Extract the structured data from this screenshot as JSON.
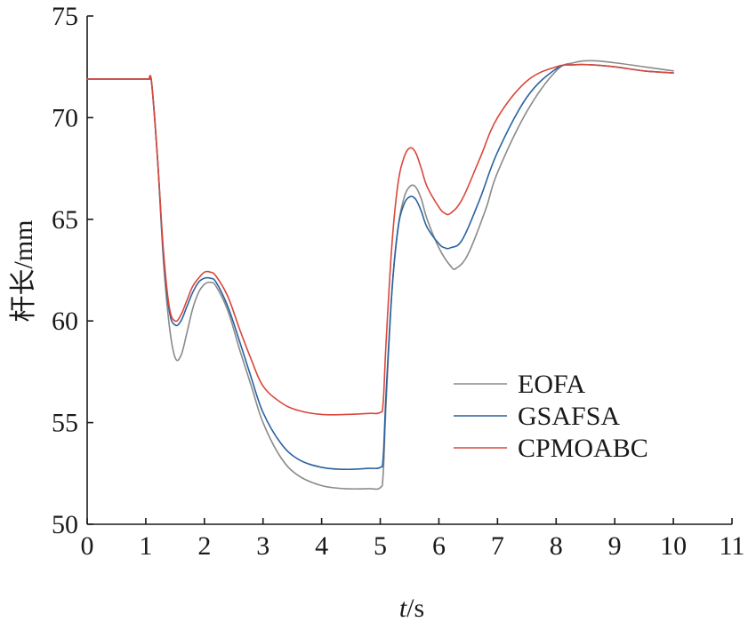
{
  "chart_data": {
    "type": "line",
    "title": "",
    "xlabel": "t/s",
    "xlabel_italic": "t",
    "xlabel_rest": "/s",
    "ylabel": "杆长/mm",
    "xlim": [
      0,
      11
    ],
    "ylim": [
      50,
      75
    ],
    "xticks": [
      "0",
      "1",
      "2",
      "3",
      "4",
      "5",
      "6",
      "7",
      "8",
      "9",
      "10",
      "11"
    ],
    "yticks": [
      "50",
      "55",
      "60",
      "65",
      "70",
      "75"
    ],
    "grid": false,
    "legend_position": "right",
    "series": [
      {
        "name": "EOFA",
        "color": "#8a8a8a",
        "x": [
          0,
          1.0,
          1.05,
          1.1,
          1.2,
          1.3,
          1.4,
          1.5,
          1.6,
          1.7,
          1.8,
          1.9,
          2.0,
          2.1,
          2.2,
          2.4,
          2.6,
          2.8,
          3.0,
          3.3,
          3.6,
          4.0,
          4.4,
          4.8,
          5.0,
          5.05,
          5.1,
          5.2,
          5.3,
          5.4,
          5.5,
          5.6,
          5.7,
          5.8,
          6.0,
          6.2,
          6.3,
          6.5,
          6.8,
          7.0,
          7.5,
          8.0,
          8.3,
          8.6,
          9.0,
          9.5,
          10.0
        ],
        "y": [
          71.9,
          71.9,
          71.9,
          71.7,
          68.0,
          63.0,
          59.8,
          58.2,
          58.3,
          59.4,
          60.6,
          61.4,
          61.8,
          61.9,
          61.7,
          60.5,
          58.6,
          56.8,
          55.0,
          53.3,
          52.4,
          51.9,
          51.75,
          51.75,
          51.8,
          52.5,
          56.0,
          61.5,
          64.5,
          66.0,
          66.6,
          66.6,
          66.0,
          65.0,
          63.6,
          62.7,
          62.6,
          63.3,
          65.5,
          67.3,
          70.3,
          72.3,
          72.7,
          72.8,
          72.7,
          72.5,
          72.3
        ]
      },
      {
        "name": "GSAFSA",
        "color": "#2a62a0",
        "x": [
          0,
          1.0,
          1.05,
          1.1,
          1.2,
          1.3,
          1.4,
          1.5,
          1.6,
          1.7,
          1.8,
          1.9,
          2.0,
          2.1,
          2.2,
          2.4,
          2.6,
          2.8,
          3.0,
          3.3,
          3.6,
          4.0,
          4.4,
          4.8,
          5.0,
          5.05,
          5.1,
          5.2,
          5.3,
          5.4,
          5.5,
          5.6,
          5.7,
          5.8,
          6.0,
          6.1,
          6.2,
          6.4,
          6.7,
          7.0,
          7.5,
          8.0,
          8.3,
          8.6,
          9.0,
          9.5,
          10.0
        ],
        "y": [
          71.9,
          71.9,
          71.9,
          71.7,
          68.0,
          63.3,
          60.5,
          59.8,
          60.0,
          60.7,
          61.4,
          61.9,
          62.1,
          62.1,
          61.9,
          60.7,
          59.0,
          57.2,
          55.5,
          54.0,
          53.2,
          52.8,
          52.7,
          52.75,
          52.8,
          53.3,
          56.5,
          61.5,
          64.5,
          65.7,
          66.1,
          66.0,
          65.4,
          64.6,
          63.8,
          63.6,
          63.6,
          64.0,
          66.0,
          68.3,
          71.0,
          72.4,
          72.6,
          72.6,
          72.5,
          72.3,
          72.2
        ]
      },
      {
        "name": "CPMOABC",
        "color": "#d9473a",
        "x": [
          0,
          1.0,
          1.05,
          1.1,
          1.2,
          1.3,
          1.4,
          1.5,
          1.6,
          1.7,
          1.8,
          1.9,
          2.0,
          2.1,
          2.2,
          2.4,
          2.6,
          2.8,
          3.0,
          3.3,
          3.6,
          4.0,
          4.4,
          4.8,
          5.0,
          5.05,
          5.1,
          5.2,
          5.3,
          5.4,
          5.5,
          5.6,
          5.7,
          5.8,
          6.0,
          6.1,
          6.2,
          6.4,
          6.7,
          7.0,
          7.5,
          8.0,
          8.3,
          8.6,
          9.0,
          9.5,
          10.0
        ],
        "y": [
          71.9,
          71.9,
          71.9,
          71.7,
          68.0,
          63.5,
          60.7,
          60.0,
          60.3,
          61.0,
          61.7,
          62.1,
          62.4,
          62.4,
          62.2,
          61.2,
          59.6,
          58.1,
          56.8,
          56.0,
          55.6,
          55.4,
          55.4,
          55.45,
          55.5,
          56.0,
          59.0,
          63.8,
          66.7,
          68.0,
          68.5,
          68.3,
          67.5,
          66.6,
          65.6,
          65.3,
          65.3,
          66.0,
          68.0,
          70.0,
          71.8,
          72.5,
          72.6,
          72.6,
          72.5,
          72.3,
          72.2
        ]
      }
    ]
  }
}
